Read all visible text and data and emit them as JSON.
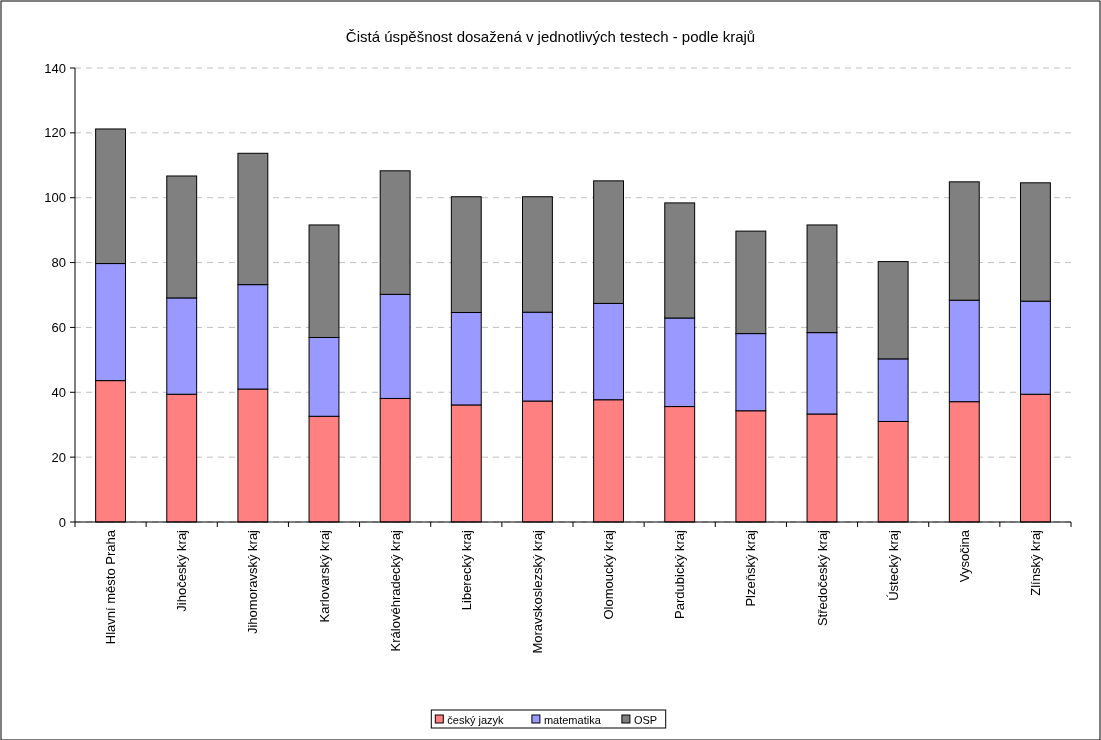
{
  "chart_data": {
    "type": "bar",
    "title": "Čistá úspěšnost dosažená v jednotlivých testech - podle krajů",
    "stacked": true,
    "categories": [
      "Hlavní město Praha",
      "Jihočeský kraj",
      "Jihomoravský kraj",
      "Karlovarský kraj",
      "Královéhradecký kraj",
      "Liberecký kraj",
      "Moravskoslezský kraj",
      "Olomoucký kraj",
      "Pardubický kraj",
      "Plzeňský kraj",
      "Středočeský kraj",
      "Ústecký kraj",
      "Vysočina",
      "Zlínský kraj"
    ],
    "series": [
      {
        "name": "český jazyk",
        "color": "#ff8080",
        "values": [
          43.6,
          39.4,
          41.0,
          32.6,
          38.1,
          36.1,
          37.3,
          37.7,
          35.6,
          34.3,
          33.3,
          31.0,
          37.1,
          39.4
        ]
      },
      {
        "name": "matematika",
        "color": "#9999ff",
        "values": [
          36.1,
          29.7,
          32.2,
          24.3,
          32.1,
          28.5,
          27.4,
          29.7,
          27.3,
          23.8,
          25.1,
          19.3,
          31.3,
          28.7
        ]
      },
      {
        "name": "OSP",
        "color": "#808080",
        "values": [
          41.5,
          37.6,
          40.5,
          34.7,
          38.1,
          35.7,
          35.6,
          37.8,
          35.5,
          31.6,
          33.2,
          30.0,
          36.5,
          36.5
        ]
      }
    ],
    "ylim": [
      0,
      140
    ],
    "yticks": [
      0,
      20,
      40,
      60,
      80,
      100,
      120,
      140
    ],
    "grid": "y",
    "legend": "bottom"
  }
}
